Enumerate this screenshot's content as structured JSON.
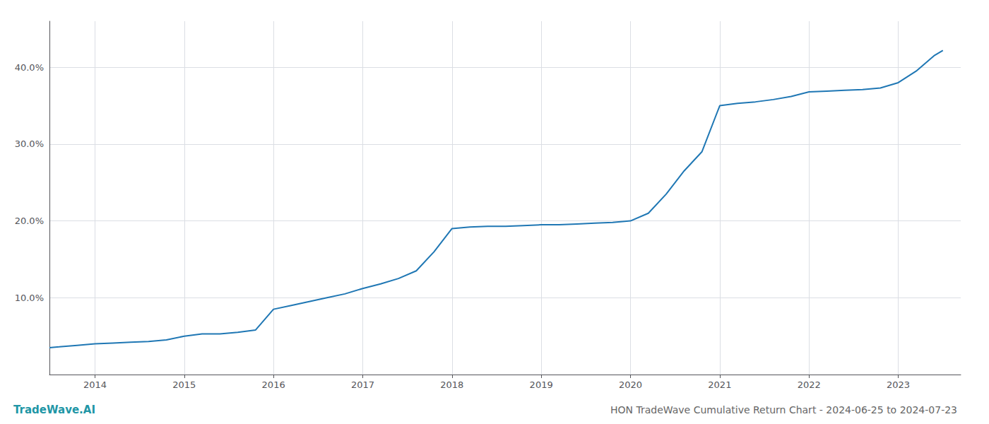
{
  "chart_data": {
    "type": "line",
    "title": "HON TradeWave Cumulative Return Chart - 2024-06-25 to 2024-07-23",
    "annotations": [
      {
        "text": "TradeWave.AI",
        "color": "#2196a6"
      }
    ],
    "x": [
      2013.49,
      2013.6,
      2013.8,
      2014.0,
      2014.2,
      2014.4,
      2014.6,
      2014.8,
      2015.0,
      2015.2,
      2015.4,
      2015.6,
      2015.8,
      2016.0,
      2016.2,
      2016.4,
      2016.6,
      2016.8,
      2017.0,
      2017.2,
      2017.4,
      2017.6,
      2017.8,
      2018.0,
      2018.2,
      2018.4,
      2018.6,
      2018.8,
      2019.0,
      2019.2,
      2019.4,
      2019.6,
      2019.8,
      2020.0,
      2020.2,
      2020.4,
      2020.6,
      2020.8,
      2021.0,
      2021.2,
      2021.4,
      2021.6,
      2021.8,
      2022.0,
      2022.2,
      2022.4,
      2022.6,
      2022.8,
      2023.0,
      2023.2,
      2023.4,
      2023.5
    ],
    "values": [
      3.5,
      3.6,
      3.8,
      4.0,
      4.1,
      4.2,
      4.3,
      4.5,
      5.0,
      5.3,
      5.3,
      5.5,
      5.8,
      8.5,
      9.0,
      9.5,
      10.0,
      10.5,
      11.2,
      11.8,
      12.5,
      13.5,
      16.0,
      19.0,
      19.2,
      19.3,
      19.3,
      19.4,
      19.5,
      19.5,
      19.6,
      19.7,
      19.8,
      20.0,
      21.0,
      23.5,
      26.5,
      29.0,
      35.0,
      35.3,
      35.5,
      35.8,
      36.2,
      36.8,
      36.9,
      37.0,
      37.1,
      37.3,
      38.0,
      39.5,
      41.5,
      42.2
    ],
    "color": "#1f77b4",
    "xlim": [
      2013.49,
      2023.7
    ],
    "xticks": [
      2014,
      2015,
      2016,
      2017,
      2018,
      2019,
      2020,
      2021,
      2022,
      2023
    ],
    "ylim": [
      0,
      46
    ],
    "yticks": [
      {
        "value": 10.0,
        "label": "10.0%"
      },
      {
        "value": 20.0,
        "label": "20.0%"
      },
      {
        "value": 30.0,
        "label": "30.0%"
      },
      {
        "value": 40.0,
        "label": "40.0%"
      }
    ],
    "grid": true
  }
}
